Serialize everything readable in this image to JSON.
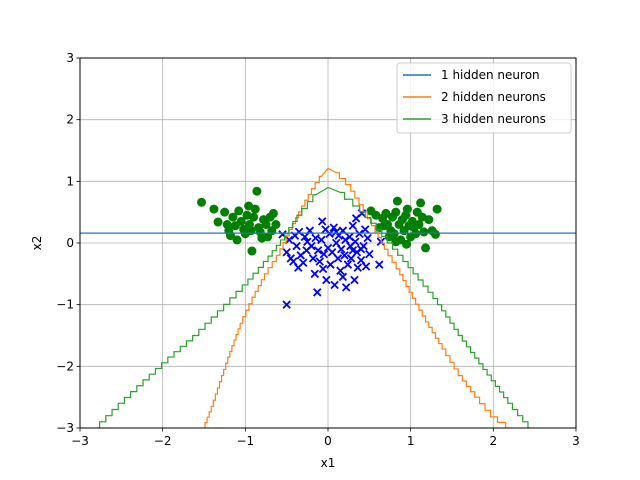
{
  "chart_data": {
    "type": "scatter",
    "title": "",
    "xlabel": "x1",
    "ylabel": "x2",
    "xlim": [
      -3,
      3
    ],
    "ylim": [
      -3,
      3
    ],
    "xticks": [
      -3,
      -2,
      -1,
      0,
      1,
      2,
      3
    ],
    "yticks": [
      -3,
      -2,
      -1,
      0,
      1,
      2,
      3
    ],
    "grid": true,
    "legend_position": "top-right",
    "scatter_series": [
      {
        "marker": "circle",
        "color": "#008000",
        "points": [
          [
            -1.53,
            0.66
          ],
          [
            -1.38,
            0.55
          ],
          [
            -1.33,
            0.34
          ],
          [
            -1.25,
            0.5
          ],
          [
            -1.22,
            0.3
          ],
          [
            -1.2,
            0.2
          ],
          [
            -1.18,
            0.12
          ],
          [
            -1.15,
            0.42
          ],
          [
            -1.12,
            0.28
          ],
          [
            -1.1,
            0.05
          ],
          [
            -1.08,
            0.52
          ],
          [
            -1.05,
            0.35
          ],
          [
            -1.02,
            0.22
          ],
          [
            -1.0,
            0.15
          ],
          [
            -0.98,
            0.45
          ],
          [
            -0.96,
            0.6
          ],
          [
            -0.95,
            0.3
          ],
          [
            -0.93,
            0.2
          ],
          [
            -0.92,
            -0.13
          ],
          [
            -0.9,
            0.42
          ],
          [
            -0.88,
            0.55
          ],
          [
            -0.86,
            0.84
          ],
          [
            -0.84,
            0.25
          ],
          [
            -0.82,
            0.18
          ],
          [
            -0.8,
            0.08
          ],
          [
            -0.78,
            0.38
          ],
          [
            -0.75,
            0.3
          ],
          [
            -0.73,
            0.1
          ],
          [
            -0.7,
            0.42
          ],
          [
            -0.68,
            0.2
          ],
          [
            -0.66,
            0.48
          ],
          [
            -0.63,
            0.3
          ],
          [
            0.52,
            0.52
          ],
          [
            0.58,
            0.45
          ],
          [
            0.62,
            0.25
          ],
          [
            0.66,
            0.4
          ],
          [
            0.7,
            0.48
          ],
          [
            0.72,
            0.3
          ],
          [
            0.74,
            0.1
          ],
          [
            0.76,
            0.2
          ],
          [
            0.78,
            0.42
          ],
          [
            0.8,
            0.15
          ],
          [
            0.82,
            0.5
          ],
          [
            0.84,
            0.68
          ],
          [
            0.86,
            0.3
          ],
          [
            0.88,
            0.05
          ],
          [
            0.9,
            0.38
          ],
          [
            0.92,
            0.2
          ],
          [
            0.94,
            0.45
          ],
          [
            0.96,
            0.55
          ],
          [
            0.98,
            0.28
          ],
          [
            1.0,
            0.1
          ],
          [
            1.02,
            0.35
          ],
          [
            1.04,
            0.25
          ],
          [
            1.06,
            0.15
          ],
          [
            1.08,
            0.5
          ],
          [
            1.1,
            0.3
          ],
          [
            1.12,
            0.65
          ],
          [
            1.14,
            0.42
          ],
          [
            1.16,
            0.18
          ],
          [
            1.18,
            -0.08
          ],
          [
            1.22,
            0.38
          ],
          [
            1.26,
            0.2
          ],
          [
            1.3,
            0.14
          ],
          [
            1.32,
            0.55
          ],
          [
            0.95,
            -0.02
          ],
          [
            0.82,
            0.02
          ],
          [
            0.68,
            0.28
          ]
        ]
      },
      {
        "marker": "x",
        "color": "#0000ff",
        "points": [
          [
            -0.5,
            -1.0
          ],
          [
            -0.55,
            0.14
          ],
          [
            -0.5,
            -0.15
          ],
          [
            -0.47,
            0.05
          ],
          [
            -0.45,
            -0.25
          ],
          [
            -0.42,
            -0.3
          ],
          [
            -0.4,
            0.12
          ],
          [
            -0.38,
            -0.05
          ],
          [
            -0.36,
            -0.4
          ],
          [
            -0.35,
            0.18
          ],
          [
            -0.33,
            -0.2
          ],
          [
            -0.3,
            -0.32
          ],
          [
            -0.28,
            0.1
          ],
          [
            -0.26,
            -0.12
          ],
          [
            -0.25,
            0.02
          ],
          [
            -0.22,
            0.2
          ],
          [
            -0.2,
            -0.05
          ],
          [
            -0.18,
            -0.25
          ],
          [
            -0.16,
            -0.5
          ],
          [
            -0.15,
            0.08
          ],
          [
            -0.13,
            -0.8
          ],
          [
            -0.12,
            -0.12
          ],
          [
            -0.1,
            -0.3
          ],
          [
            -0.08,
            0.05
          ],
          [
            -0.07,
            0.35
          ],
          [
            -0.05,
            -0.18
          ],
          [
            -0.03,
            0.22
          ],
          [
            -0.02,
            -0.6
          ],
          [
            0.0,
            -0.08
          ],
          [
            0.02,
            0.15
          ],
          [
            0.03,
            -0.35
          ],
          [
            0.05,
            -0.15
          ],
          [
            0.07,
            0.25
          ],
          [
            0.08,
            -0.68
          ],
          [
            0.1,
            0.0
          ],
          [
            0.12,
            -0.25
          ],
          [
            0.13,
            0.12
          ],
          [
            0.15,
            -0.45
          ],
          [
            0.16,
            -0.1
          ],
          [
            0.18,
            0.2
          ],
          [
            0.2,
            -0.2
          ],
          [
            0.21,
            0.05
          ],
          [
            0.22,
            -0.72
          ],
          [
            0.24,
            -0.35
          ],
          [
            0.26,
            0.1
          ],
          [
            0.27,
            -0.05
          ],
          [
            0.28,
            -0.25
          ],
          [
            0.3,
            0.28
          ],
          [
            0.32,
            -0.6
          ],
          [
            0.33,
            0.02
          ],
          [
            0.34,
            0.4
          ],
          [
            0.35,
            -0.15
          ],
          [
            0.36,
            -0.4
          ],
          [
            0.38,
            0.15
          ],
          [
            0.4,
            -0.28
          ],
          [
            0.41,
            0.48
          ],
          [
            0.43,
            -0.05
          ],
          [
            0.45,
            0.22
          ],
          [
            0.46,
            -0.38
          ],
          [
            0.48,
            0.08
          ],
          [
            0.5,
            -0.18
          ],
          [
            0.62,
            -0.35
          ],
          [
            0.64,
            0.02
          ],
          [
            0.3,
            -0.12
          ],
          [
            0.1,
            0.18
          ],
          [
            -0.06,
            -0.42
          ],
          [
            0.18,
            -0.55
          ],
          [
            0.4,
            -0.1
          ]
        ]
      }
    ],
    "series": [
      {
        "name": "1 hidden neuron",
        "color": "#1f77b4",
        "x": [
          -3,
          3
        ],
        "y": [
          0.16,
          0.16
        ]
      },
      {
        "name": "2 hidden neurons",
        "color": "#ff7f0e",
        "x": [
          -1.5,
          -1.4,
          -1.2,
          -1.05,
          -0.9,
          -0.75,
          -0.6,
          -0.45,
          -0.3,
          -0.18,
          -0.08,
          0.0,
          0.1,
          0.25,
          0.4,
          0.55,
          0.7,
          0.85,
          1.0,
          1.2,
          1.4,
          1.6,
          1.8,
          2.0,
          2.2
        ],
        "y": [
          -3.0,
          -2.65,
          -1.85,
          -1.3,
          -0.88,
          -0.5,
          -0.2,
          0.22,
          0.6,
          0.88,
          1.08,
          1.21,
          1.14,
          0.95,
          0.62,
          0.28,
          -0.1,
          -0.42,
          -0.8,
          -1.28,
          -1.72,
          -2.15,
          -2.5,
          -2.82,
          -3.0
        ]
      },
      {
        "name": "3 hidden neurons",
        "color": "#2ca02c",
        "x": [
          -2.8,
          -2.5,
          -2.2,
          -1.9,
          -1.6,
          -1.3,
          -1.0,
          -0.75,
          -0.55,
          -0.35,
          -0.15,
          0.0,
          0.15,
          0.35,
          0.55,
          0.75,
          1.0,
          1.3,
          1.6,
          1.9,
          2.2,
          2.45
        ],
        "y": [
          -3.0,
          -2.6,
          -2.22,
          -1.85,
          -1.5,
          -1.1,
          -0.68,
          -0.3,
          0.05,
          0.45,
          0.78,
          0.9,
          0.82,
          0.6,
          0.32,
          0.0,
          -0.4,
          -0.9,
          -1.5,
          -2.05,
          -2.6,
          -3.0
        ]
      }
    ]
  }
}
